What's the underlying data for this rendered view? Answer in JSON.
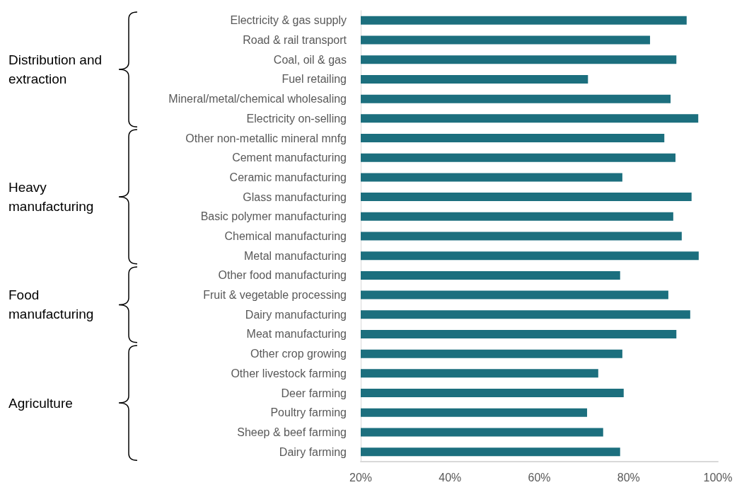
{
  "chart_data": {
    "type": "bar",
    "orientation": "horizontal",
    "categories": [
      "Electricity & gas supply",
      "Road & rail transport",
      "Coal, oil & gas",
      "Fuel retailing",
      "Mineral/metal/chemical wholesaling",
      "Electricity on-selling",
      "Other non-metallic mineral mnfg",
      "Cement manufacturing",
      "Ceramic manufacturing",
      "Glass manufacturing",
      "Basic polymer manufacturing",
      "Chemical manufacturing",
      "Metal manufacturing",
      "Other food manufacturing",
      "Fruit & vegetable processing",
      "Dairy manufacturing",
      "Meat manufacturing",
      "Other crop growing",
      "Other livestock farming",
      "Deer farming",
      "Poultry farming",
      "Sheep & beef farming",
      "Dairy farming"
    ],
    "values": [
      93.0,
      84.8,
      90.7,
      70.9,
      89.4,
      95.6,
      88.0,
      90.5,
      78.6,
      94.1,
      90.0,
      91.9,
      95.7,
      78.1,
      88.9,
      93.8,
      90.7,
      78.6,
      73.2,
      78.9,
      70.7,
      74.3,
      78.1
    ],
    "color": "#1c6f7e",
    "xlim": [
      20,
      100
    ],
    "xticks": [
      {
        "value": 20,
        "label": "20%"
      },
      {
        "value": 40,
        "label": "40%"
      },
      {
        "value": 60,
        "label": "60%"
      },
      {
        "value": 80,
        "label": "80%"
      },
      {
        "value": 100,
        "label": "100%"
      }
    ],
    "grid": false,
    "annotations": [
      "Distribution and extraction",
      "Heavy manufacturing",
      "Food manufacturing",
      "Agriculture"
    ]
  }
}
